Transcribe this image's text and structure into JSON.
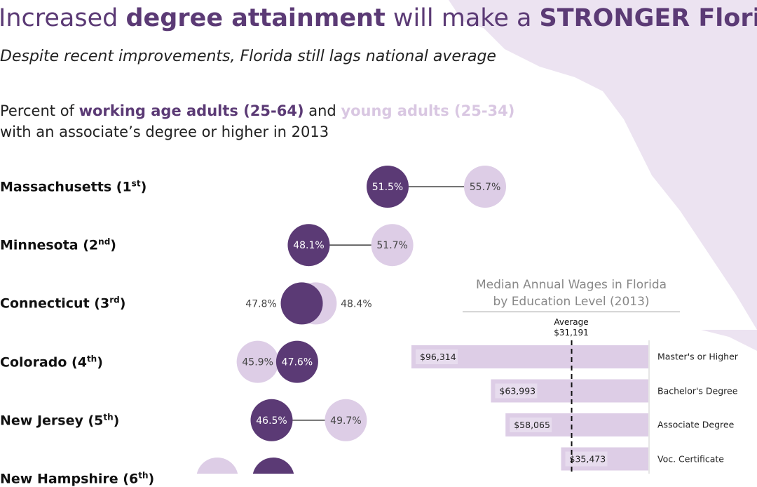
{
  "header": {
    "title_parts": [
      "Increased ",
      "degree attainment",
      " will make a ",
      "STRONGER Florida"
    ],
    "subtitle": "Despite recent improvements, Florida still lags national average",
    "desc_parts": [
      "Percent of ",
      "working age adults (25-64)",
      " and ",
      "young adults (25-34)",
      " with an associate’s degree or higher in 2013"
    ]
  },
  "colors": {
    "working_age": "#5b3a75",
    "young": "#ddcde6",
    "bar": "#ddcde6",
    "map": "#ece3f1"
  },
  "chart_data": [
    {
      "type": "dumbbell",
      "series": [
        {
          "name": "working age adults (25-64)"
        },
        {
          "name": "young adults (25-34)"
        }
      ],
      "rows": [
        {
          "state": "Massachusetts",
          "rank": "1",
          "suffix": "st",
          "working": 51.5,
          "young": 55.7
        },
        {
          "state": "Minnesota",
          "rank": "2",
          "suffix": "nd",
          "working": 48.1,
          "young": 51.7
        },
        {
          "state": "Connecticut",
          "rank": "3",
          "suffix": "rd",
          "working": 47.8,
          "young": 48.4
        },
        {
          "state": "Colorado",
          "rank": "4",
          "suffix": "th",
          "working": 47.6,
          "young": 45.9
        },
        {
          "state": "New Jersey",
          "rank": "5",
          "suffix": "th",
          "working": 46.5,
          "young": 49.7
        },
        {
          "state": "New Hampshire",
          "rank": "6",
          "suffix": "th",
          "working": null,
          "young": null
        }
      ]
    },
    {
      "type": "bar",
      "title": "Median Annual Wages in Florida by Education Level (2013)",
      "title_lines": [
        "Median Annual Wages in Florida",
        "by Education Level (2013)"
      ],
      "categories": [
        "Master's or Higher",
        "Bachelor's Degree",
        "Associate Degree",
        "Voc. Certificate"
      ],
      "values": [
        96314,
        63993,
        58065,
        35473
      ],
      "labels": [
        "$96,314",
        "$63,993",
        "$58,065",
        "$35,473"
      ],
      "average": {
        "label": "Average",
        "value": 31191,
        "value_label": "$31,191"
      }
    }
  ]
}
